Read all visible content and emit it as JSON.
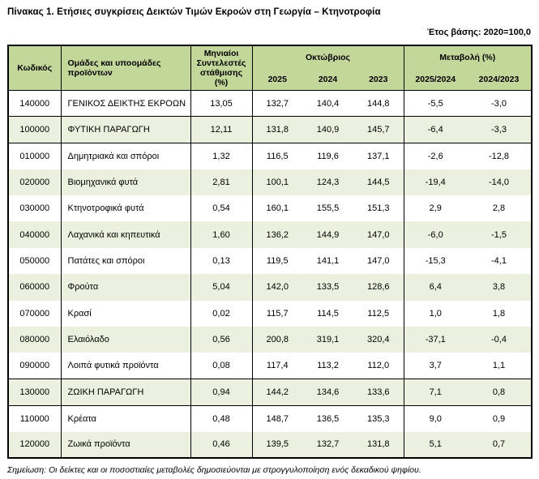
{
  "page": {
    "title": "Πίνακας 1. Ετήσιες συγκρίσεις Δεικτών Τιμών Εκροών στη Γεωργία – Κτηνοτροφία",
    "base_year_label": "Έτος βάσης: 2020=100,0",
    "note": "Σημείωση: Οι δείκτες και οι ποσοστιαίες μεταβολές δημοσιεύονται με στρογγυλοποίηση ενός δεκαδικού ψηφίου."
  },
  "colors": {
    "header_green": "#c4d79b",
    "row_green": "#ebf1de",
    "border": "#000000"
  },
  "table": {
    "headers": {
      "code": "Κωδικός",
      "groups": "Ομάδες και υποομάδες προϊόντων",
      "weights": "Μηνιαίοι Συντελεστές στάθμισης (%)",
      "month_group": "Οκτώβριος",
      "change_group": "Μεταβολή (%)",
      "years": [
        "2025",
        "2024",
        "2023"
      ],
      "change_periods": [
        "2025/2024",
        "2024/2023"
      ]
    },
    "rows": [
      {
        "code": "140000",
        "name": "ΓΕΝΙΚΟΣ ΔΕΙΚΤΗΣ ΕΚΡΟΩΝ",
        "weight": "13,05",
        "y2025": "132,7",
        "y2024": "140,4",
        "y2023": "144,8",
        "chg_2025_2024": "-5,5",
        "chg_2024_2023": "-3,0",
        "level": "total"
      },
      {
        "code": "100000",
        "name": "ΦΥΤΙΚΗ ΠΑΡΑΓΩΓΗ",
        "weight": "12,11",
        "y2025": "131,8",
        "y2024": "140,9",
        "y2023": "145,7",
        "chg_2025_2024": "-6,4",
        "chg_2024_2023": "-3,3",
        "level": "group"
      },
      {
        "code": "010000",
        "name": "Δημητριακά και σπόροι",
        "weight": "1,32",
        "y2025": "116,5",
        "y2024": "119,6",
        "y2023": "137,1",
        "chg_2025_2024": "-2,6",
        "chg_2024_2023": "-12,8",
        "level": "sub"
      },
      {
        "code": "020000",
        "name": "Βιομηχανικά φυτά",
        "weight": "2,81",
        "y2025": "100,1",
        "y2024": "124,3",
        "y2023": "144,5",
        "chg_2025_2024": "-19,4",
        "chg_2024_2023": "-14,0",
        "level": "sub"
      },
      {
        "code": "030000",
        "name": "Κτηνοτροφικά φυτά",
        "weight": "0,54",
        "y2025": "160,1",
        "y2024": "155,5",
        "y2023": "151,3",
        "chg_2025_2024": "2,9",
        "chg_2024_2023": "2,8",
        "level": "sub"
      },
      {
        "code": "040000",
        "name": "Λαχανικά και κηπευτικά",
        "weight": "1,60",
        "y2025": "136,2",
        "y2024": "144,9",
        "y2023": "147,0",
        "chg_2025_2024": "-6,0",
        "chg_2024_2023": "-1,5",
        "level": "sub"
      },
      {
        "code": "050000",
        "name": "Πατάτες και σπόροι",
        "weight": "0,13",
        "y2025": "119,5",
        "y2024": "141,1",
        "y2023": "147,0",
        "chg_2025_2024": "-15,3",
        "chg_2024_2023": "-4,1",
        "level": "sub"
      },
      {
        "code": "060000",
        "name": "Φρούτα",
        "weight": "5,04",
        "y2025": "142,0",
        "y2024": "133,5",
        "y2023": "128,6",
        "chg_2025_2024": "6,4",
        "chg_2024_2023": "3,8",
        "level": "sub"
      },
      {
        "code": "070000",
        "name": "Κρασί",
        "weight": "0,02",
        "y2025": "115,7",
        "y2024": "114,5",
        "y2023": "112,5",
        "chg_2025_2024": "1,0",
        "chg_2024_2023": "1,8",
        "level": "sub"
      },
      {
        "code": "080000",
        "name": "Ελαιόλαδο",
        "weight": "0,56",
        "y2025": "200,8",
        "y2024": "319,1",
        "y2023": "320,4",
        "chg_2025_2024": "-37,1",
        "chg_2024_2023": "-0,4",
        "level": "sub"
      },
      {
        "code": "090000",
        "name": "Λοιπά φυτικά προϊόντα",
        "weight": "0,08",
        "y2025": "117,4",
        "y2024": "113,2",
        "y2023": "112,0",
        "chg_2025_2024": "3,7",
        "chg_2024_2023": "1,1",
        "level": "sub"
      },
      {
        "code": "130000",
        "name": "ΖΩΙΚΗ ΠΑΡΑΓΩΓΗ",
        "weight": "0,94",
        "y2025": "144,2",
        "y2024": "134,6",
        "y2023": "133,6",
        "chg_2025_2024": "7,1",
        "chg_2024_2023": "0,8",
        "level": "group"
      },
      {
        "code": "110000",
        "name": "Κρέατα",
        "weight": "0,48",
        "y2025": "148,7",
        "y2024": "136,5",
        "y2023": "135,3",
        "chg_2025_2024": "9,0",
        "chg_2024_2023": "0,9",
        "level": "sub"
      },
      {
        "code": "120000",
        "name": "Ζωικά προϊόντα",
        "weight": "0,46",
        "y2025": "139,5",
        "y2024": "132,7",
        "y2023": "131,8",
        "chg_2025_2024": "5,1",
        "chg_2024_2023": "0,7",
        "level": "sub"
      }
    ]
  }
}
